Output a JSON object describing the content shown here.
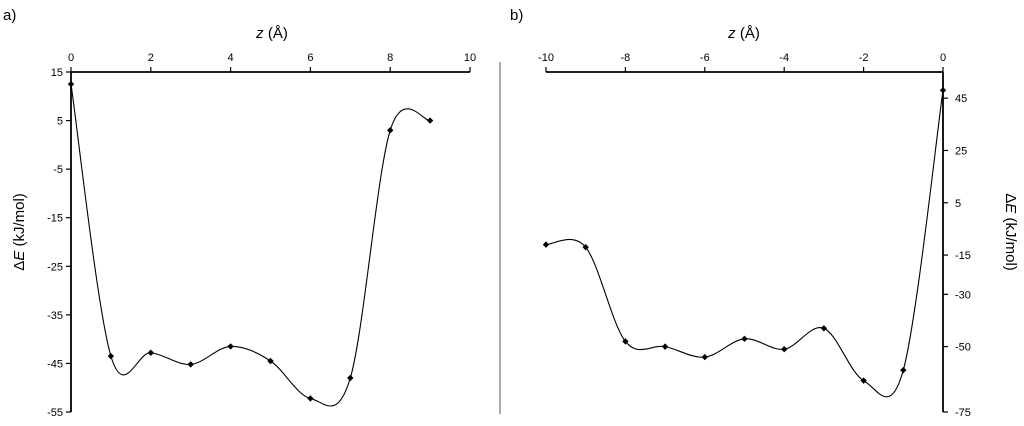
{
  "chart_data": [
    {
      "panel_label": "a)",
      "type": "line",
      "xlabel_italic": "z",
      "xlabel_rest": " (Å)",
      "ylabel_prefix": "Δ",
      "ylabel_italic": "E",
      "ylabel_rest": " (kJ/mol)",
      "xlim": [
        0,
        10
      ],
      "ylim": [
        -55,
        15
      ],
      "x_ticks": [
        0,
        2,
        4,
        6,
        8,
        10
      ],
      "y_ticks": [
        15,
        5,
        -5,
        -15,
        -25,
        -35,
        -45,
        -55
      ],
      "x_axis_position": "top",
      "y_axis_position": "left",
      "grid": false,
      "series": [
        {
          "x": [
            0,
            1,
            2,
            3,
            4,
            5,
            6,
            7,
            8,
            9
          ],
          "y": [
            12.5,
            -43.5,
            -42.8,
            -45.2,
            -41.5,
            -44.5,
            -52.2,
            -48.0,
            3.0,
            5.0
          ]
        }
      ]
    },
    {
      "panel_label": "b)",
      "type": "line",
      "xlabel_italic": "z",
      "xlabel_rest": " (Å)",
      "ylabel_prefix": "Δ",
      "ylabel_italic": "E",
      "ylabel_rest": " (kJ/mol)",
      "xlim": [
        -10,
        0
      ],
      "ylim": [
        -75,
        55
      ],
      "x_ticks": [
        -10,
        -8,
        -6,
        -4,
        -2,
        0
      ],
      "y_ticks": [
        45,
        25,
        5,
        -15,
        -30,
        -50,
        -75
      ],
      "x_axis_position": "top",
      "y_axis_position": "right",
      "grid": false,
      "series": [
        {
          "x": [
            -10,
            -9,
            -8,
            -7,
            -6,
            -5,
            -4,
            -3,
            -2,
            -1,
            0
          ],
          "y": [
            -11,
            -12,
            -48,
            -50,
            -54,
            -47,
            -51,
            -43,
            -63,
            -59,
            48
          ]
        }
      ]
    }
  ]
}
